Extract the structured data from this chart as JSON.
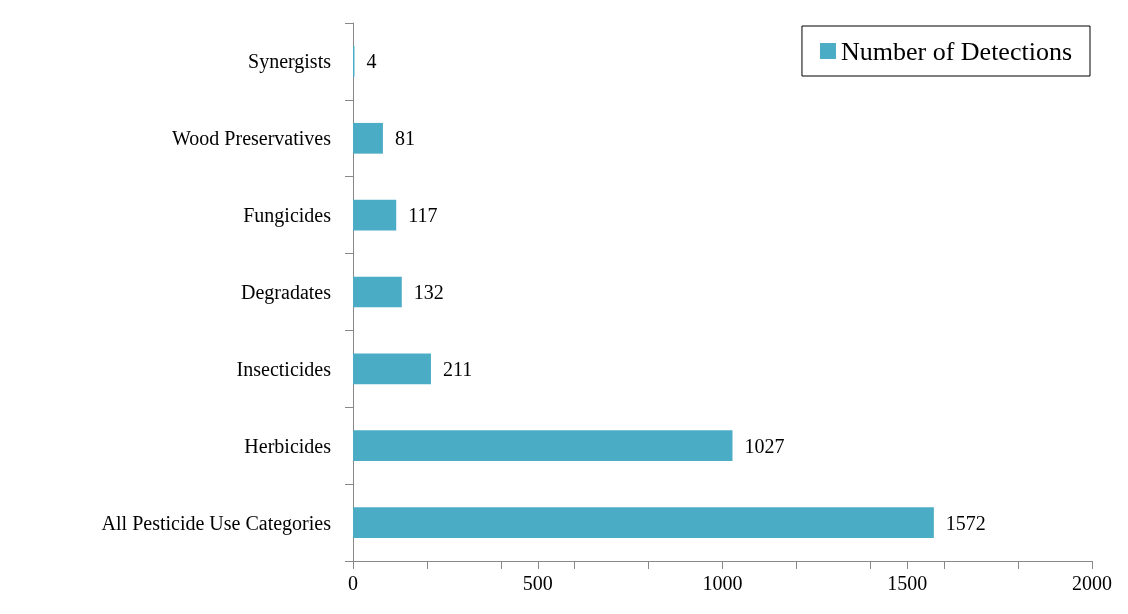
{
  "chart_data": {
    "type": "bar",
    "orientation": "horizontal",
    "categories": [
      "Synergists",
      "Wood Preservatives",
      "Fungicides",
      "Degradates",
      "Insecticides",
      "Herbicides",
      "All Pesticide Use Categories"
    ],
    "series": [
      {
        "name": "Number of Detections",
        "color": "#4bacc6",
        "values": [
          4,
          81,
          117,
          132,
          211,
          1027,
          1572
        ]
      }
    ],
    "xlim": [
      0,
      2000
    ],
    "xticks": [
      0,
      {
        "value": 200,
        "label": null
      },
      {
        "value": 400,
        "label": null
      },
      500,
      {
        "value": 600,
        "label": null
      },
      {
        "value": 800,
        "label": null
      },
      1000,
      {
        "value": 1200,
        "label": null
      },
      {
        "value": 1400,
        "label": null
      },
      1500,
      {
        "value": 1600,
        "label": null
      },
      {
        "value": 1800,
        "label": null
      },
      2000
    ],
    "data_labels": true,
    "grid": false,
    "legend": "top right"
  }
}
